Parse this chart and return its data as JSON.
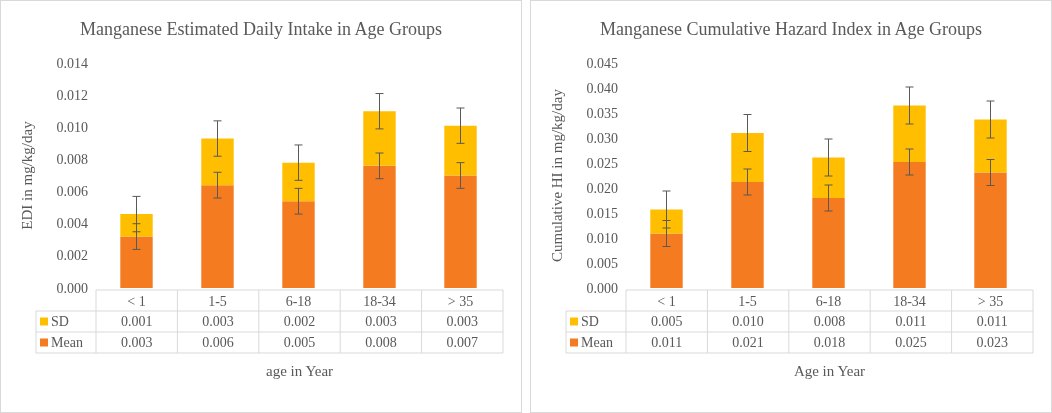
{
  "chart_data": [
    {
      "type": "bar",
      "title": "Manganese Estimated Daily Intake in Age Groups",
      "xlabel": "age in Year",
      "ylabel": "EDI in mg/kg/day",
      "categories": [
        "< 1",
        "1-5",
        "6-18",
        "18-34",
        "> 35"
      ],
      "stacked": true,
      "legend": "bottom",
      "grid": false,
      "series": [
        {
          "name": "Mean",
          "color": "#f47b20",
          "values": [
            0.0032,
            0.0064,
            0.0054,
            0.0076,
            0.007
          ],
          "errors": [
            0.0008,
            0.0008,
            0.0008,
            0.0008,
            0.0008
          ],
          "value_labels": [
            "0.003",
            "0.006",
            "0.005",
            "0.008",
            "0.007"
          ]
        },
        {
          "name": "SD",
          "color": "#ffbf00",
          "values": [
            0.0014,
            0.0029,
            0.0024,
            0.0034,
            0.0031
          ],
          "errors": [
            0.0011,
            0.0011,
            0.0011,
            0.0011,
            0.0011
          ],
          "value_labels": [
            "0.001",
            "0.003",
            "0.002",
            "0.003",
            "0.003"
          ]
        }
      ],
      "ylim": [
        0,
        0.014
      ],
      "yticks": [
        {
          "value": 0,
          "label": "0.000"
        },
        {
          "value": 0.002,
          "label": "0.002"
        },
        {
          "value": 0.004,
          "label": "0.004"
        },
        {
          "value": 0.006,
          "label": "0.006"
        },
        {
          "value": 0.008,
          "label": "0.008"
        },
        {
          "value": 0.01,
          "label": "0.010"
        },
        {
          "value": 0.012,
          "label": "0.012"
        },
        {
          "value": 0.014,
          "label": "0.014"
        }
      ]
    },
    {
      "type": "bar",
      "title": "Manganese Cumulative Hazard Index in Age Groups",
      "xlabel": "Age in Year",
      "ylabel": "Cumulative HI in mg/kg/day",
      "categories": [
        "< 1",
        "1-5",
        "6-18",
        "18-34",
        "> 35"
      ],
      "stacked": true,
      "legend": "bottom",
      "grid": false,
      "series": [
        {
          "name": "Mean",
          "color": "#f47b20",
          "values": [
            0.0109,
            0.0212,
            0.018,
            0.0252,
            0.0231
          ],
          "errors": [
            0.0026,
            0.0026,
            0.0026,
            0.0026,
            0.0026
          ],
          "value_labels": [
            "0.011",
            "0.021",
            "0.018",
            "0.025",
            "0.023"
          ]
        },
        {
          "name": "SD",
          "color": "#ffbf00",
          "values": [
            0.0048,
            0.0098,
            0.0081,
            0.0113,
            0.0106
          ],
          "errors": [
            0.0037,
            0.0037,
            0.0037,
            0.0037,
            0.0037
          ],
          "value_labels": [
            "0.005",
            "0.010",
            "0.008",
            "0.011",
            "0.011"
          ]
        }
      ],
      "ylim": [
        0,
        0.045
      ],
      "yticks": [
        {
          "value": 0,
          "label": "0.000"
        },
        {
          "value": 0.005,
          "label": "0.005"
        },
        {
          "value": 0.01,
          "label": "0.010"
        },
        {
          "value": 0.015,
          "label": "0.015"
        },
        {
          "value": 0.02,
          "label": "0.020"
        },
        {
          "value": 0.025,
          "label": "0.025"
        },
        {
          "value": 0.03,
          "label": "0.030"
        },
        {
          "value": 0.035,
          "label": "0.035"
        },
        {
          "value": 0.04,
          "label": "0.040"
        },
        {
          "value": 0.045,
          "label": "0.045"
        }
      ]
    }
  ]
}
